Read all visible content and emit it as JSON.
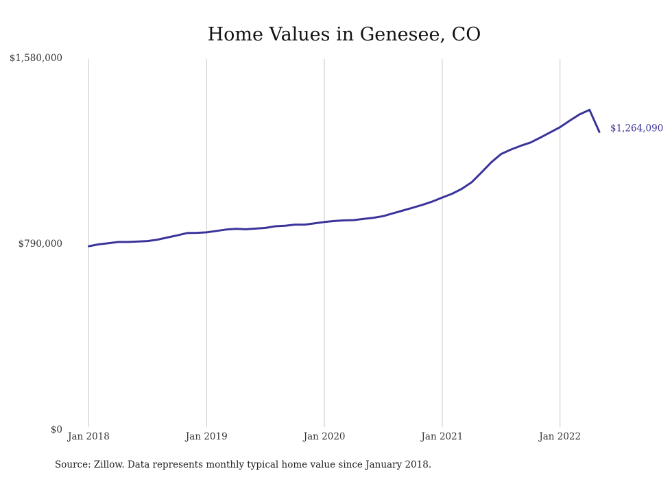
{
  "chart_data": {
    "type": "line",
    "title": "Home Values in Genesee, CO",
    "xlabel": "",
    "ylabel": "",
    "x_ticks": [
      {
        "date": "2018-01",
        "label": "Jan 2018"
      },
      {
        "date": "2019-01",
        "label": "Jan 2019"
      },
      {
        "date": "2020-01",
        "label": "Jan 2020"
      },
      {
        "date": "2021-01",
        "label": "Jan 2021"
      },
      {
        "date": "2022-01",
        "label": "Jan 2022"
      }
    ],
    "y_ticks": [
      {
        "value": 0,
        "label": "$0"
      },
      {
        "value": 790000,
        "label": "$790,000"
      },
      {
        "value": 1580000,
        "label": "$1,580,000"
      }
    ],
    "ylim": [
      0,
      1580000
    ],
    "xlim": [
      "2018-01",
      "2022-05"
    ],
    "grid": "vertical at x ticks",
    "line_color": "#3a349a",
    "end_label": "$1,264,090",
    "series": [
      {
        "x": [
          "2018-01",
          "2018-02",
          "2018-03",
          "2018-04",
          "2018-05",
          "2018-06",
          "2018-07",
          "2018-08",
          "2018-09",
          "2018-10",
          "2018-11",
          "2018-12",
          "2019-01",
          "2019-02",
          "2019-03",
          "2019-04",
          "2019-05",
          "2019-06",
          "2019-07",
          "2019-08",
          "2019-09",
          "2019-10",
          "2019-11",
          "2019-12",
          "2020-01",
          "2020-02",
          "2020-03",
          "2020-04",
          "2020-05",
          "2020-06",
          "2020-07",
          "2020-08",
          "2020-09",
          "2020-10",
          "2020-11",
          "2020-12",
          "2021-01",
          "2021-02",
          "2021-03",
          "2021-04",
          "2021-05",
          "2021-06",
          "2021-07",
          "2021-08",
          "2021-09",
          "2021-10",
          "2021-11",
          "2021-12",
          "2022-01",
          "2022-02",
          "2022-03",
          "2022-04",
          "2022-05"
        ],
        "values": [
          778000,
          786000,
          791000,
          796000,
          796000,
          798000,
          800000,
          806000,
          815000,
          824000,
          834000,
          835000,
          837000,
          843000,
          849000,
          852000,
          850000,
          853000,
          856000,
          863000,
          865000,
          870000,
          870000,
          875000,
          881000,
          885000,
          888000,
          889000,
          894000,
          899000,
          906000,
          918000,
          930000,
          942000,
          954000,
          968000,
          985000,
          1001000,
          1022000,
          1050000,
          1092000,
          1135000,
          1170000,
          1189000,
          1205000,
          1219000,
          1240000,
          1262000,
          1284000,
          1312000,
          1339000,
          1358000,
          1264090
        ]
      }
    ]
  },
  "footer": {
    "source": "Source: Zillow. Data represents monthly typical home value since January 2018."
  }
}
